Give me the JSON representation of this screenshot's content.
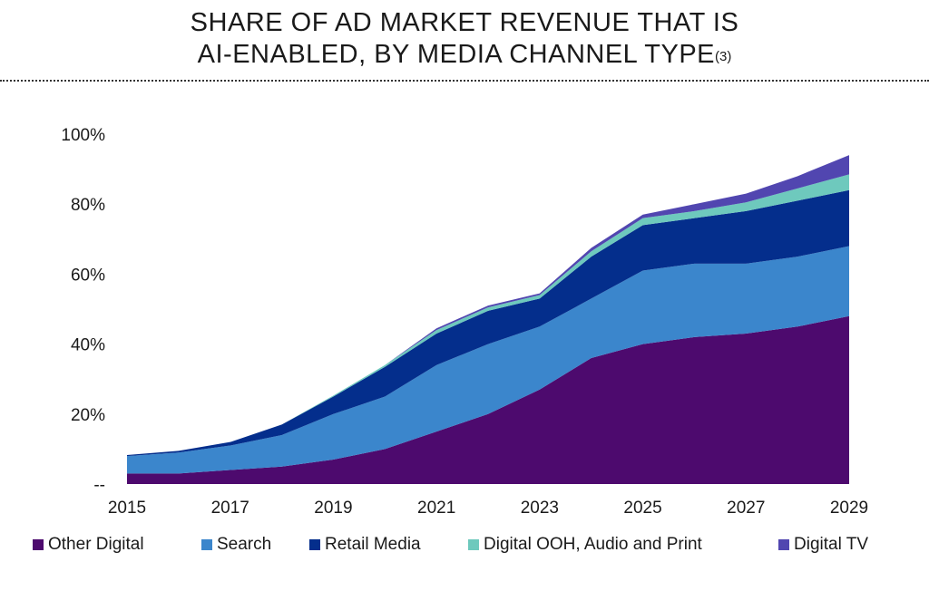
{
  "chart_data": {
    "type": "area",
    "stacked": true,
    "title_line1": "SHARE OF AD MARKET REVENUE THAT IS",
    "title_line2": "AI-ENABLED, BY MEDIA CHANNEL TYPE",
    "title_sup": "(3)",
    "x": [
      2015,
      2016,
      2017,
      2018,
      2019,
      2020,
      2021,
      2022,
      2023,
      2024,
      2025,
      2026,
      2027,
      2028,
      2029
    ],
    "x_tick_labels": [
      "2015",
      "2017",
      "2019",
      "2021",
      "2023",
      "2025",
      "2027",
      "2029"
    ],
    "y_tick_labels": [
      "--",
      "20%",
      "40%",
      "60%",
      "80%",
      "100%"
    ],
    "ylim": [
      0,
      100
    ],
    "xlabel": "",
    "ylabel": "",
    "grid": false,
    "legend_position": "bottom",
    "series": [
      {
        "name": "Other Digital",
        "color": "#4d0a6e",
        "values": [
          3,
          3,
          4,
          5,
          7,
          10,
          15,
          20,
          27,
          36,
          40,
          42,
          43,
          45,
          48
        ]
      },
      {
        "name": "Search",
        "color": "#3b86cc",
        "values": [
          5,
          6,
          7,
          9,
          13,
          15,
          19,
          20,
          18,
          17,
          21,
          21,
          20,
          20,
          20
        ]
      },
      {
        "name": "Retail Media",
        "color": "#042e8c",
        "values": [
          0.3,
          0.5,
          1.0,
          3.0,
          5.0,
          8.5,
          9.0,
          9.5,
          8.0,
          12.0,
          13.0,
          13.0,
          15.0,
          16.0,
          16.0
        ]
      },
      {
        "name": "Digital OOH, Audio and Print",
        "color": "#6ec9bd",
        "values": [
          0,
          0,
          0,
          0,
          0.3,
          0.5,
          1.0,
          1.0,
          1.0,
          1.5,
          2.0,
          2.0,
          2.5,
          3.5,
          4.5
        ]
      },
      {
        "name": "Digital TV",
        "color": "#5146b0",
        "values": [
          0,
          0,
          0,
          0,
          0,
          0,
          0.5,
          0.5,
          0.5,
          1.0,
          1.0,
          2.0,
          2.5,
          3.5,
          5.5
        ]
      }
    ]
  }
}
